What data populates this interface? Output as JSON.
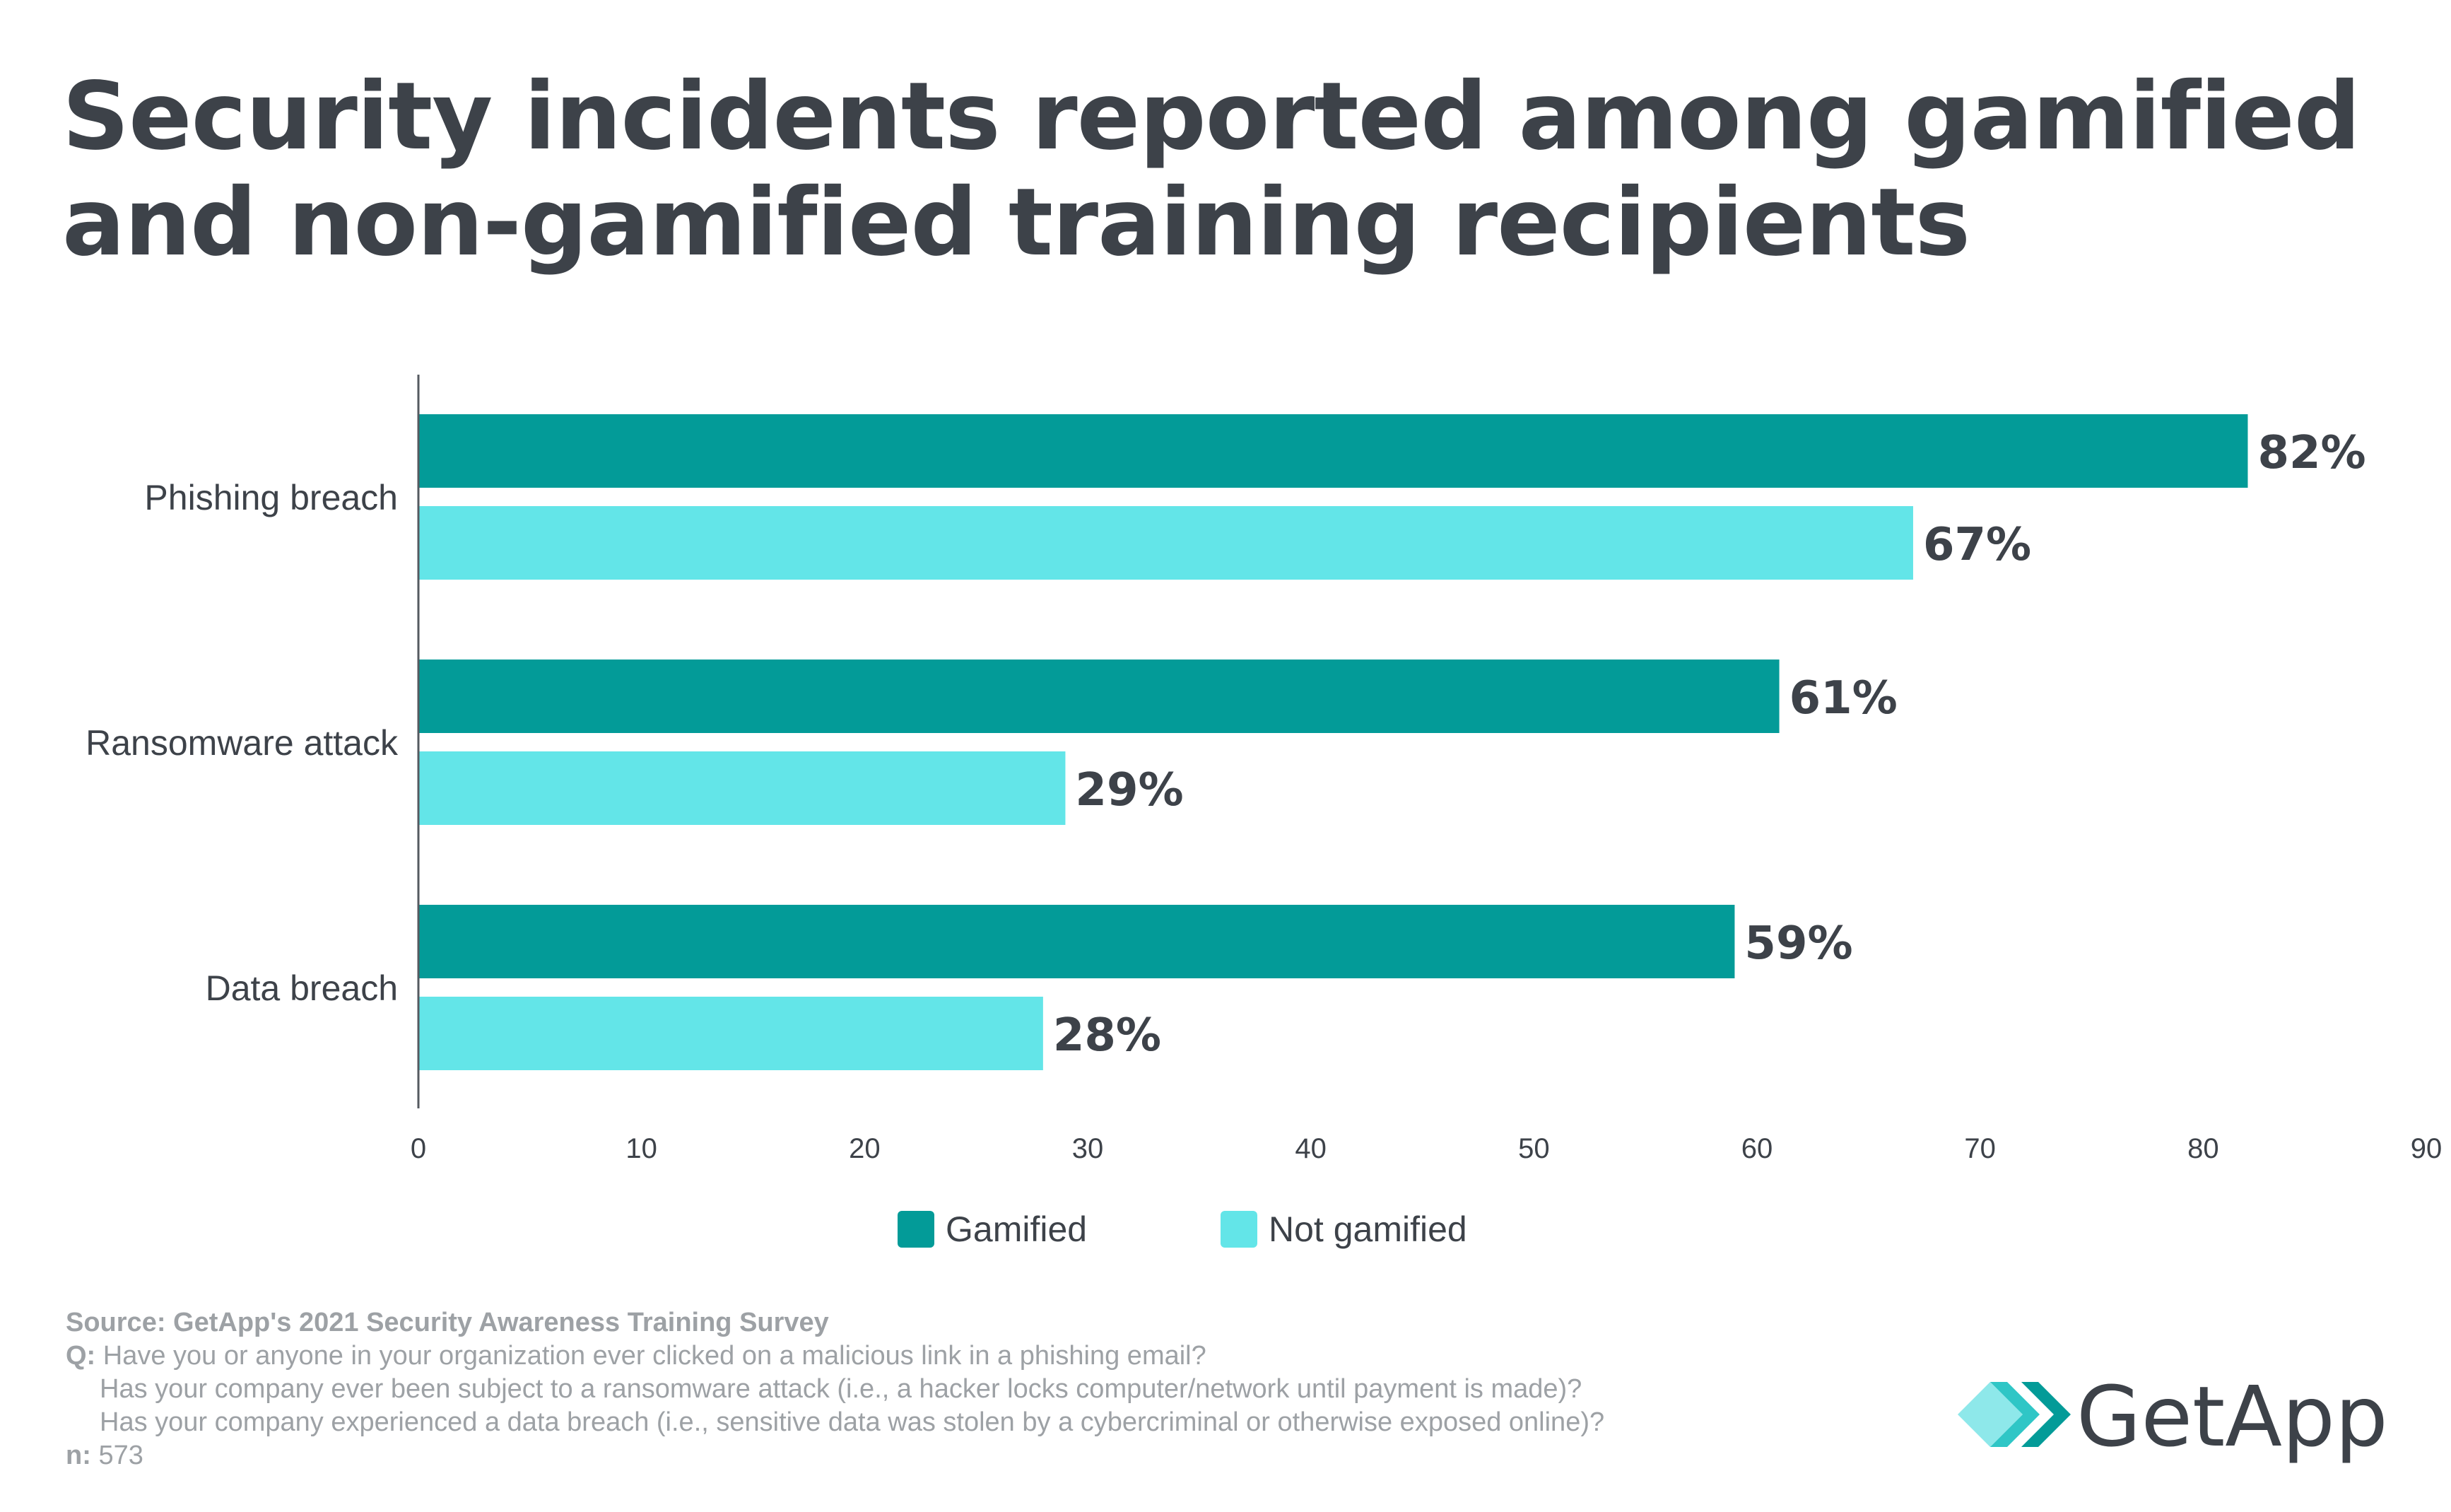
{
  "title": "Security incidents reported among gamified and non-gamified training recipients",
  "chart_data": {
    "type": "bar",
    "orientation": "horizontal",
    "categories": [
      "Phishing breach",
      "Ransomware attack",
      "Data breach"
    ],
    "series": [
      {
        "name": "Gamified",
        "values": [
          82,
          61,
          59
        ],
        "color": "#039b98"
      },
      {
        "name": "Not gamified",
        "values": [
          67,
          29,
          28
        ],
        "color": "#63e5e8"
      }
    ],
    "data_labels": {
      "Gamified": [
        "82%",
        "61%",
        "59%"
      ],
      "Not gamified": [
        "67%",
        "29%",
        "28%"
      ]
    },
    "xlim": [
      0,
      90
    ],
    "xticks": [
      "0",
      "10",
      "20",
      "30",
      "40",
      "50",
      "60",
      "70",
      "80",
      "90"
    ],
    "legend_position": "bottom",
    "grid": false
  },
  "footer": {
    "source_label": "Source:",
    "source_text": "GetApp's 2021 Security Awareness Training Survey",
    "q_label": "Q:",
    "questions": [
      "Have you or anyone in your organization ever clicked on a malicious link in a phishing email?",
      "Has your company ever been subject to a ransomware attack (i.e., a hacker locks computer/network until payment is made)?",
      "Has your company experienced a data breach (i.e., sensitive data was stolen by a cybercriminal or otherwise exposed online)?"
    ],
    "n_label": "n:",
    "n_value": "573"
  },
  "logo": {
    "text": "GetApp",
    "color": "#3d4249",
    "accent_colors": [
      "#8ee8ea",
      "#2fc6c6",
      "#039b98"
    ]
  }
}
